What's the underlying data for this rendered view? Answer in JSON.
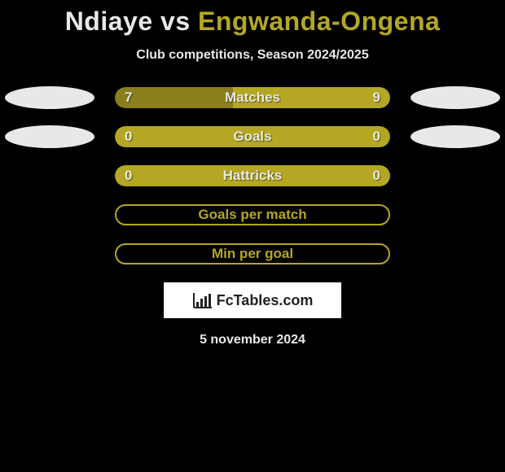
{
  "colors": {
    "background": "#000000",
    "text": "#e8e8e8",
    "accent": "#b4a723",
    "accent_dark": "#8a7f1b",
    "ellipse": "#e8e8e8",
    "brand_box_bg": "#ffffff",
    "brand_text": "#222222"
  },
  "header": {
    "player1": "Ndiaye",
    "vs": "vs",
    "player2": "Engwanda-Ongena",
    "subtitle": "Club competitions, Season 2024/2025"
  },
  "stats": [
    {
      "label": "Matches",
      "left_value": "7",
      "right_value": "9",
      "left_fill_pct": 43,
      "right_fill_pct": 57,
      "left_color": "#8a7f1b",
      "right_color": "#b4a723",
      "show_left_ellipse": true,
      "show_right_ellipse": true,
      "bordered": false
    },
    {
      "label": "Goals",
      "left_value": "0",
      "right_value": "0",
      "left_fill_pct": 50,
      "right_fill_pct": 50,
      "left_color": "#b4a723",
      "right_color": "#b4a723",
      "show_left_ellipse": true,
      "show_right_ellipse": true,
      "bordered": false
    },
    {
      "label": "Hattricks",
      "left_value": "0",
      "right_value": "0",
      "left_fill_pct": 50,
      "right_fill_pct": 50,
      "left_color": "#b4a723",
      "right_color": "#b4a723",
      "show_left_ellipse": false,
      "show_right_ellipse": false,
      "bordered": false
    },
    {
      "label": "Goals per match",
      "left_value": "",
      "right_value": "",
      "left_fill_pct": 0,
      "right_fill_pct": 0,
      "left_color": "#b4a723",
      "right_color": "#b4a723",
      "show_left_ellipse": false,
      "show_right_ellipse": false,
      "bordered": true,
      "border_color": "#b4a723"
    },
    {
      "label": "Min per goal",
      "left_value": "",
      "right_value": "",
      "left_fill_pct": 0,
      "right_fill_pct": 0,
      "left_color": "#b4a723",
      "right_color": "#b4a723",
      "show_left_ellipse": false,
      "show_right_ellipse": false,
      "bordered": true,
      "border_color": "#b4a723"
    }
  ],
  "brand": {
    "icon": "bar-chart-icon",
    "text": "FcTables.com"
  },
  "date": "5 november 2024"
}
